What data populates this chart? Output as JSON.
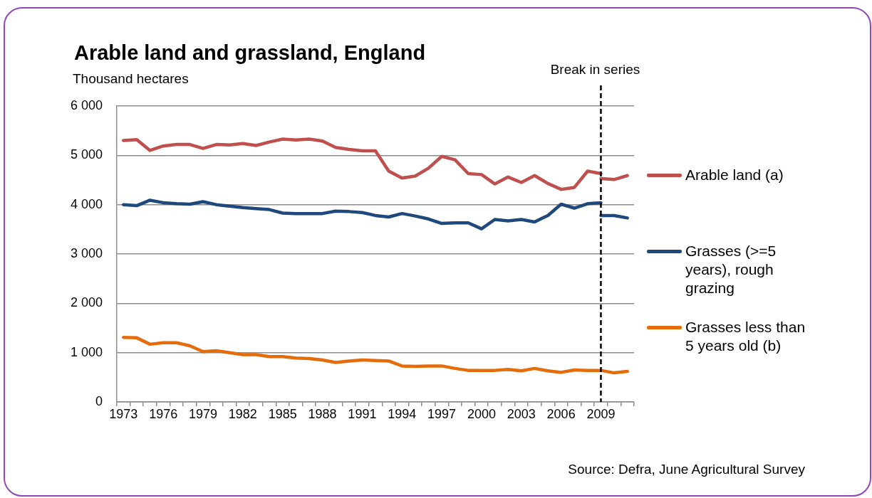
{
  "chart_data": {
    "type": "line",
    "title": "Arable land and grassland, England",
    "ylabel": "Thousand hectares",
    "categories": [
      "1973",
      null,
      null,
      "1976",
      null,
      null,
      "1979",
      null,
      null,
      "1982",
      null,
      null,
      "1985",
      null,
      null,
      "1988",
      null,
      null,
      "1991",
      null,
      null,
      "1994",
      null,
      null,
      "1997",
      null,
      null,
      "2000",
      null,
      null,
      "2003",
      null,
      null,
      "2006",
      null,
      null,
      "2009",
      null,
      null
    ],
    "series": [
      {
        "name": "Arable land (a)",
        "color": "#c0504d",
        "values": [
          5300,
          5320,
          5100,
          5190,
          5220,
          5220,
          5140,
          5220,
          5210,
          5240,
          5200,
          5270,
          5330,
          5310,
          5330,
          5290,
          5160,
          5120,
          5090,
          5090,
          4680,
          4540,
          4580,
          4740,
          4980,
          4910,
          4630,
          4610,
          4420,
          4560,
          4450,
          4590,
          4430,
          4310,
          4350,
          4680,
          4630,
          null,
          null
        ]
      },
      {
        "name": "Grasses (>=5 years), rough grazing",
        "color": "#1f497d",
        "values": [
          4000,
          3980,
          4090,
          4040,
          4020,
          4010,
          4060,
          4000,
          3970,
          3940,
          3920,
          3900,
          3830,
          3820,
          3820,
          3820,
          3870,
          3860,
          3840,
          3780,
          3750,
          3820,
          3770,
          3710,
          3620,
          3630,
          3630,
          3510,
          3700,
          3670,
          3700,
          3650,
          3780,
          4010,
          3930,
          4020,
          4040,
          null,
          null
        ]
      },
      {
        "name": "Grasses less than 5 years old (b)",
        "color": "#e46c0a",
        "values": [
          1310,
          1300,
          1170,
          1200,
          1200,
          1140,
          1020,
          1040,
          1000,
          960,
          960,
          920,
          920,
          890,
          880,
          850,
          800,
          830,
          850,
          840,
          830,
          730,
          720,
          730,
          730,
          680,
          640,
          640,
          640,
          660,
          630,
          680,
          630,
          600,
          650,
          640,
          640,
          590,
          620
        ]
      },
      {
        "color": "#c0504d",
        "values": [
          null,
          null,
          null,
          null,
          null,
          null,
          null,
          null,
          null,
          null,
          null,
          null,
          null,
          null,
          null,
          null,
          null,
          null,
          null,
          null,
          null,
          null,
          null,
          null,
          null,
          null,
          null,
          null,
          null,
          null,
          null,
          null,
          null,
          null,
          null,
          null,
          4530,
          4510,
          4590
        ]
      },
      {
        "color": "#1f497d",
        "values": [
          null,
          null,
          null,
          null,
          null,
          null,
          null,
          null,
          null,
          null,
          null,
          null,
          null,
          null,
          null,
          null,
          null,
          null,
          null,
          null,
          null,
          null,
          null,
          null,
          null,
          null,
          null,
          null,
          null,
          null,
          null,
          null,
          null,
          null,
          null,
          null,
          3780,
          3780,
          3730
        ]
      }
    ],
    "ylim": [
      0,
      6000
    ],
    "yticks": [
      0,
      {
        "value": 1000,
        "label": "1 000"
      },
      {
        "value": 2000,
        "label": "2 000"
      },
      {
        "value": 3000,
        "label": "3 000"
      },
      {
        "value": 4000,
        "label": "4 000"
      },
      {
        "value": 5000,
        "label": "5 000"
      },
      {
        "value": 6000,
        "label": "6 000"
      }
    ],
    "grid": "y",
    "legend": "right",
    "ref_lines": [
      {
        "axis": "x",
        "value": "2009",
        "label": "Break in series",
        "color": "#000000",
        "line_style": "dashed"
      }
    ],
    "annotations": [
      "Source: Defra, June Agricultural Survey"
    ]
  }
}
